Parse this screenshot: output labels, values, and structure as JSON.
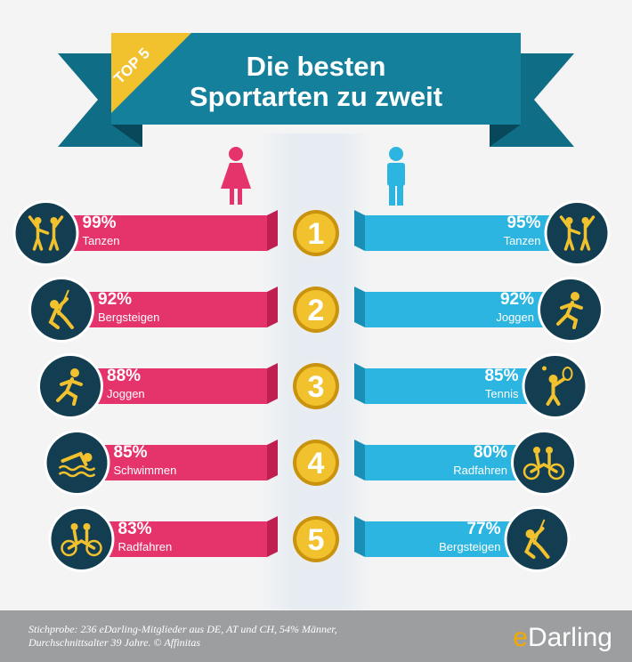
{
  "header": {
    "badge": "TOP 5",
    "title_line1": "Die besten",
    "title_line2": "Sportarten zu zweit"
  },
  "colors": {
    "women": "#e5336b",
    "men": "#2bb5e0",
    "banner": "#0f6e86",
    "banner_dark": "#08485a",
    "icon_circle": "#133e52",
    "gold": "#f2c12e",
    "gold_dark": "#c9930d"
  },
  "chart_data": {
    "type": "table",
    "ranks": [
      "1",
      "2",
      "3",
      "4",
      "5"
    ],
    "series": [
      {
        "values": [
          99,
          92,
          88,
          85,
          83
        ],
        "labels": [
          "99%",
          "92%",
          "88%",
          "85%",
          "83%"
        ],
        "sports": [
          "Tanzen",
          "Bergsteigen",
          "Joggen",
          "Schwimmen",
          "Radfahren"
        ],
        "icons": [
          "dancing-icon",
          "climbing-icon",
          "running-icon",
          "swimming-icon",
          "tandem-bike-icon"
        ]
      },
      {
        "values": [
          95,
          92,
          85,
          80,
          77
        ],
        "labels": [
          "95%",
          "92%",
          "85%",
          "80%",
          "77%"
        ],
        "sports": [
          "Tanzen",
          "Joggen",
          "Tennis",
          "Radfahren",
          "Bergsteigen"
        ],
        "icons": [
          "dancing-icon",
          "running-icon",
          "tennis-icon",
          "tandem-bike-icon",
          "climbing-icon"
        ]
      }
    ]
  },
  "footer": {
    "note_line1": "Stichprobe: 236 eDarling-Mitglieder aus DE, AT und CH, 54% Männer,",
    "note_line2": "Durchschnittsalter 39 Jahre. © Affinitas",
    "brand_e": "e",
    "brand_rest": "Darling"
  }
}
